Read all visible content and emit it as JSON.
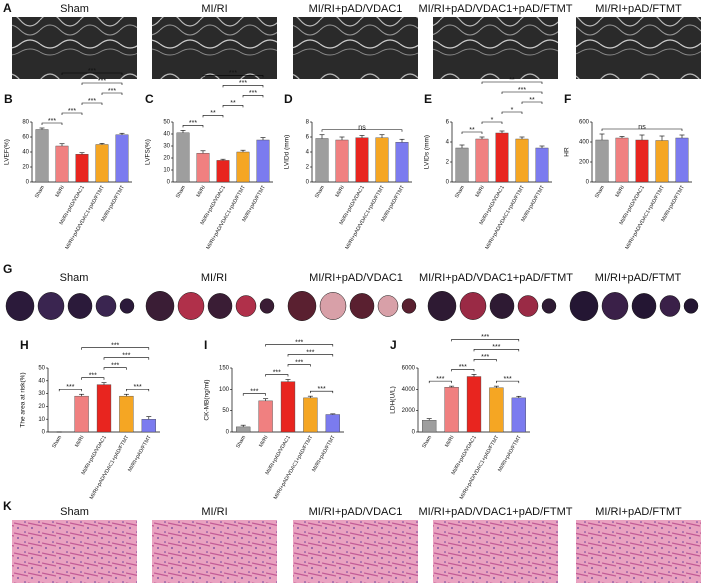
{
  "figure": {
    "echo": {
      "letter": "A",
      "labels": [
        "Sham",
        "MI/RI",
        "MI/RI+pAD/VDAC1",
        "MI/RI+pAD/VDAC1+pAD/FTMT",
        "MI/RI+pAD/FTMT"
      ]
    },
    "infarct": {
      "letter": "G",
      "labels": [
        "Sham",
        "MI/RI",
        "MI/RI+pAD/VDAC1",
        "MI/RI+pAD/VDAC1+pAD/FTMT",
        "MI/RI+pAD/FTMT"
      ]
    },
    "histology": {
      "letter": "K",
      "labels": [
        "Sham",
        "MI/RI",
        "MI/RI+pAD/VDAC1",
        "MI/RI+pAD/VDAC1+pAD/FTMT",
        "MI/RI+pAD/FTMT"
      ]
    }
  },
  "chart_data": [
    {
      "type": "bar",
      "letter": "B",
      "ylabel": "LVEF(%)",
      "categories": [
        "Sham",
        "MI/RI",
        "MI/RI+pAD/VDAC1",
        "MI/RI+pAD/VDAC1+pAD/FTMT",
        "MI/RI+pAD/FTMT"
      ],
      "values": [
        70,
        48,
        37,
        50,
        63
      ],
      "errors": [
        2,
        3,
        2,
        1.5,
        2
      ],
      "colors": [
        "#9e9e9e",
        "#f08080",
        "#e8251f",
        "#f5a623",
        "#7b7bef"
      ],
      "ylim": [
        0,
        80
      ],
      "yticks": [
        0,
        20,
        40,
        60,
        80
      ],
      "brackets": [
        {
          "from": 0,
          "to": 1,
          "label": "***"
        },
        {
          "from": 1,
          "to": 2,
          "label": "***"
        },
        {
          "from": 2,
          "to": 3,
          "label": "***"
        },
        {
          "from": 3,
          "to": 4,
          "label": "***"
        },
        {
          "from": 2,
          "to": 4,
          "label": "***"
        },
        {
          "from": 1,
          "to": 4,
          "label": "***"
        }
      ]
    },
    {
      "type": "bar",
      "letter": "C",
      "ylabel": "LVFS(%)",
      "categories": [
        "Sham",
        "MI/RI",
        "MI/RI+pAD/VDAC1",
        "MI/RI+pAD/VDAC1+pAD/FTMT",
        "MI/RI+pAD/FTMT"
      ],
      "values": [
        41,
        24,
        18,
        25,
        35
      ],
      "errors": [
        2,
        2,
        1,
        1.5,
        2
      ],
      "colors": [
        "#9e9e9e",
        "#f08080",
        "#e8251f",
        "#f5a623",
        "#7b7bef"
      ],
      "ylim": [
        0,
        50
      ],
      "yticks": [
        0,
        10,
        20,
        30,
        40,
        50
      ],
      "brackets": [
        {
          "from": 0,
          "to": 1,
          "label": "***"
        },
        {
          "from": 1,
          "to": 2,
          "label": "**"
        },
        {
          "from": 2,
          "to": 3,
          "label": "**"
        },
        {
          "from": 3,
          "to": 4,
          "label": "***"
        },
        {
          "from": 2,
          "to": 4,
          "label": "***"
        },
        {
          "from": 1,
          "to": 4,
          "label": "***"
        }
      ]
    },
    {
      "type": "bar",
      "letter": "D",
      "ylabel": "LVIDd (mm)",
      "categories": [
        "Sham",
        "MI/RI",
        "MI/RI+pAD/VDAC1",
        "MI/RI+pAD/VDAC1+pAD/FTMT",
        "MI/RI+pAD/FTMT"
      ],
      "values": [
        5.8,
        5.6,
        5.9,
        5.9,
        5.3
      ],
      "errors": [
        0.5,
        0.4,
        0.3,
        0.4,
        0.4
      ],
      "colors": [
        "#9e9e9e",
        "#f08080",
        "#e8251f",
        "#f5a623",
        "#7b7bef"
      ],
      "ylim": [
        0,
        8
      ],
      "yticks": [
        0,
        2,
        4,
        6,
        8
      ],
      "brackets": [
        {
          "from": 0,
          "to": 4,
          "label": "ns"
        }
      ]
    },
    {
      "type": "bar",
      "letter": "E",
      "ylabel": "LVIDs (mm)",
      "categories": [
        "Sham",
        "MI/RI",
        "MI/RI+pAD/VDAC1",
        "MI/RI+pAD/VDAC1+pAD/FTMT",
        "MI/RI+pAD/FTMT"
      ],
      "values": [
        3.4,
        4.3,
        4.9,
        4.3,
        3.4
      ],
      "errors": [
        0.3,
        0.2,
        0.2,
        0.2,
        0.2
      ],
      "colors": [
        "#9e9e9e",
        "#f08080",
        "#e8251f",
        "#f5a623",
        "#7b7bef"
      ],
      "ylim": [
        0,
        6
      ],
      "yticks": [
        0,
        2,
        4,
        6
      ],
      "brackets": [
        {
          "from": 0,
          "to": 1,
          "label": "**"
        },
        {
          "from": 1,
          "to": 2,
          "label": "*"
        },
        {
          "from": 2,
          "to": 3,
          "label": "*"
        },
        {
          "from": 3,
          "to": 4,
          "label": "**"
        },
        {
          "from": 2,
          "to": 4,
          "label": "***"
        },
        {
          "from": 1,
          "to": 4,
          "label": "**"
        }
      ]
    },
    {
      "type": "bar",
      "letter": "F",
      "ylabel": "HR",
      "categories": [
        "Sham",
        "MI/RI",
        "MI/RI+pAD/VDAC1",
        "MI/RI+pAD/VDAC1+pAD/FTMT",
        "MI/RI+pAD/FTMT"
      ],
      "values": [
        420,
        440,
        420,
        415,
        440
      ],
      "errors": [
        60,
        15,
        50,
        45,
        30
      ],
      "colors": [
        "#9e9e9e",
        "#f08080",
        "#e8251f",
        "#f5a623",
        "#7b7bef"
      ],
      "ylim": [
        0,
        600
      ],
      "yticks": [
        0,
        200,
        400,
        600
      ],
      "brackets": [
        {
          "from": 0,
          "to": 4,
          "label": "ns"
        }
      ]
    },
    {
      "type": "bar",
      "letter": "H",
      "ylabel": "The area at risk(%)",
      "categories": [
        "Sham",
        "MI/RI",
        "MI/RI+pAD/VDAC1",
        "MI/RI+pAD/VDAC1+pAD/FTMT",
        "MI/RI+pAD/FTMT"
      ],
      "values": [
        0,
        28,
        37,
        28,
        10
      ],
      "errors": [
        0,
        1.5,
        1.5,
        1.5,
        2
      ],
      "colors": [
        "#9e9e9e",
        "#f08080",
        "#e8251f",
        "#f5a623",
        "#7b7bef"
      ],
      "ylim": [
        0,
        50
      ],
      "yticks": [
        0,
        10,
        20,
        30,
        40,
        50
      ],
      "brackets": [
        {
          "from": 0,
          "to": 1,
          "label": "***"
        },
        {
          "from": 1,
          "to": 2,
          "label": "***"
        },
        {
          "from": 3,
          "to": 4,
          "label": "***"
        },
        {
          "from": 2,
          "to": 3,
          "label": "***"
        },
        {
          "from": 2,
          "to": 4,
          "label": "***"
        },
        {
          "from": 1,
          "to": 4,
          "label": "***"
        }
      ]
    },
    {
      "type": "bar",
      "letter": "I",
      "ylabel": "CK-MB(ng/ml)",
      "categories": [
        "Sham",
        "MI/RI",
        "MI/RI+pAD/VDAC1",
        "MI/RI+pAD/VDAC1+pAD/FTMT",
        "MI/RI+pAD/FTMT"
      ],
      "values": [
        12,
        73,
        118,
        80,
        41
      ],
      "errors": [
        4,
        5,
        5,
        4,
        1.5
      ],
      "colors": [
        "#9e9e9e",
        "#f08080",
        "#e8251f",
        "#f5a623",
        "#7b7bef"
      ],
      "ylim": [
        0,
        150
      ],
      "yticks": [
        0,
        50,
        100,
        150
      ],
      "brackets": [
        {
          "from": 0,
          "to": 1,
          "label": "***"
        },
        {
          "from": 1,
          "to": 2,
          "label": "***"
        },
        {
          "from": 3,
          "to": 4,
          "label": "***"
        },
        {
          "from": 2,
          "to": 3,
          "label": "***"
        },
        {
          "from": 2,
          "to": 4,
          "label": "***"
        },
        {
          "from": 1,
          "to": 4,
          "label": "***"
        }
      ]
    },
    {
      "type": "bar",
      "letter": "J",
      "ylabel": "LDH(U/L)",
      "categories": [
        "Sham",
        "MI/RI",
        "MI/RI+pAD/VDAC1",
        "MI/RI+pAD/VDAC1+pAD/FTMT",
        "MI/RI+pAD/FTMT"
      ],
      "values": [
        1100,
        4200,
        5200,
        4150,
        3200
      ],
      "errors": [
        150,
        100,
        200,
        150,
        150
      ],
      "colors": [
        "#9e9e9e",
        "#f08080",
        "#e8251f",
        "#f5a623",
        "#7b7bef"
      ],
      "ylim": [
        0,
        6000
      ],
      "yticks": [
        0,
        2000,
        4000,
        6000
      ],
      "brackets": [
        {
          "from": 0,
          "to": 1,
          "label": "***"
        },
        {
          "from": 1,
          "to": 2,
          "label": "***"
        },
        {
          "from": 3,
          "to": 4,
          "label": "***"
        },
        {
          "from": 2,
          "to": 3,
          "label": "***"
        },
        {
          "from": 2,
          "to": 4,
          "label": "***"
        },
        {
          "from": 1,
          "to": 4,
          "label": "***"
        }
      ]
    }
  ]
}
